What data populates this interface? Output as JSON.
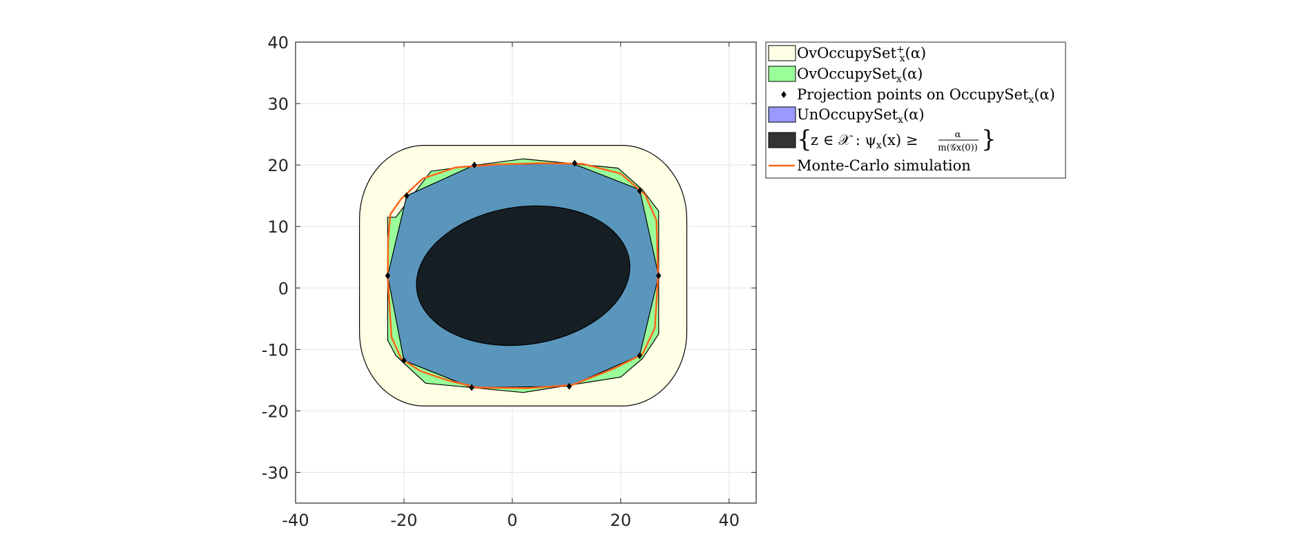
{
  "chart_data": {
    "type": "area",
    "title": "",
    "xlabel": "",
    "ylabel": "",
    "xlim": [
      -40,
      45
    ],
    "ylim": [
      -35,
      40
    ],
    "grid": true,
    "x_ticks": [
      -40,
      -20,
      0,
      20,
      40
    ],
    "y_ticks": [
      -30,
      -20,
      -10,
      0,
      10,
      20,
      30,
      40
    ],
    "x_tick_labels": [
      "-40",
      "-20",
      "0",
      "20",
      "40"
    ],
    "y_tick_labels": [
      "-30",
      "-20",
      "-10",
      "0",
      "10",
      "20",
      "30",
      "40"
    ],
    "legend_position": "outside-top-right",
    "colors": {
      "ov_plus": "#FFFFE6",
      "ov": "#99FF99",
      "projection": "#000000",
      "un": "#5A96BC",
      "un_legend": "#9999FF",
      "superlevel": "#151F24",
      "superlevel_legend": "#333333",
      "monte_carlo": "#FF6319",
      "grid": "#E3E3E3",
      "axis": "#262626"
    },
    "legend": [
      {
        "key": "ov_plus",
        "label": "OvOccupySet",
        "sub": "x",
        "sup": "+",
        "arg": "(α)"
      },
      {
        "key": "ov",
        "label": "OvOccupySet",
        "sub": "x",
        "arg": "(α)"
      },
      {
        "key": "projection",
        "label": "Projection points on OccupySet",
        "sub": "x",
        "arg": "(α)"
      },
      {
        "key": "un",
        "label": "UnOccupySet",
        "sub": "x",
        "arg": "(α)"
      },
      {
        "key": "superlevel",
        "label": "z ∈ 𝒳 : ψ",
        "sub": "x",
        "arg": "(x) ≥",
        "frac_num": "α",
        "frac_den": "m(𝒢x(0))"
      },
      {
        "key": "monte_carlo",
        "label": "Monte-Carlo simulation"
      }
    ],
    "ov_plus_set": {
      "flat_segments": {
        "top_y": 23.2,
        "bottom_y": -19.2,
        "left_x": -28.2,
        "right_x": 32.2
      },
      "corner_radius": 12,
      "corners": [
        [
          20.2,
          11.2
        ],
        [
          -16.2,
          11.2
        ],
        [
          -16.2,
          -7.2
        ],
        [
          20.2,
          -7.2
        ]
      ]
    },
    "ov_set": [
      [
        -21.5,
        11.5
      ],
      [
        -15,
        19
      ],
      [
        2,
        21
      ],
      [
        19.5,
        19.5
      ],
      [
        24,
        16
      ],
      [
        27,
        12.5
      ],
      [
        27,
        -7.5
      ],
      [
        24,
        -11.5
      ],
      [
        20,
        -14.5
      ],
      [
        2,
        -17
      ],
      [
        -16,
        -15.5
      ],
      [
        -21.5,
        -11
      ],
      [
        -23,
        -8.5
      ],
      [
        -23,
        11.5
      ]
    ],
    "un_set": [
      [
        -23,
        2
      ],
      [
        -19.5,
        15
      ],
      [
        -7,
        20
      ],
      [
        11,
        20.3
      ],
      [
        23.5,
        16
      ],
      [
        27,
        2
      ],
      [
        23.5,
        -11
      ],
      [
        10.5,
        -16
      ],
      [
        -7.5,
        -16.2
      ],
      [
        -20,
        -11.8
      ]
    ],
    "projection_points": [
      [
        -23,
        2
      ],
      [
        -19.5,
        15
      ],
      [
        -7,
        20
      ],
      [
        11.5,
        20.3
      ],
      [
        23.5,
        15.8
      ],
      [
        27,
        2
      ],
      [
        23.5,
        -11
      ],
      [
        10.5,
        -16
      ],
      [
        -7.5,
        -16.2
      ],
      [
        -20,
        -11.8
      ]
    ],
    "superlevel_ellipse": {
      "center": [
        2,
        2
      ],
      "semi_x": 19.8,
      "semi_y": 11.2,
      "rotation_deg": 8
    },
    "monte_carlo": [
      [
        -22.5,
        12
      ],
      [
        -20.5,
        14.5
      ],
      [
        -16.5,
        17.8
      ],
      [
        -10.5,
        19.6
      ],
      [
        -3,
        20.1
      ],
      [
        5,
        20.3
      ],
      [
        13,
        20.2
      ],
      [
        20,
        18.6
      ],
      [
        24.5,
        15.2
      ],
      [
        26.6,
        11
      ],
      [
        26.9,
        2
      ],
      [
        26.3,
        -6.5
      ],
      [
        24,
        -10.8
      ],
      [
        18.5,
        -13.2
      ],
      [
        11,
        -15.8
      ],
      [
        3,
        -16.3
      ],
      [
        -6.5,
        -16.2
      ],
      [
        -12,
        -15
      ],
      [
        -17,
        -13.5
      ],
      [
        -20.5,
        -11.5
      ],
      [
        -22.3,
        -8
      ],
      [
        -23,
        2
      ],
      [
        -22.9,
        8
      ],
      [
        -22.5,
        12
      ]
    ]
  }
}
